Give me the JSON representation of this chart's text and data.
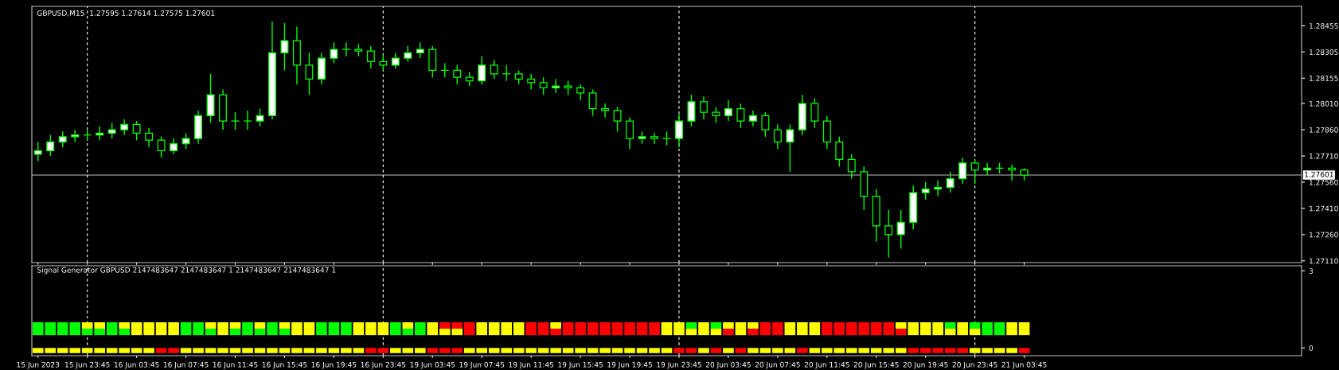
{
  "chart_data": [
    {
      "type": "candlestick",
      "title": "GBPUSD,M15  1.27595 1.27614 1.27575 1.27601",
      "categories": [
        "15 Jun 2023",
        null,
        null,
        null,
        "15 Jun 23:45",
        null,
        null,
        null,
        "16 Jun 03:45",
        null,
        null,
        null,
        "16 Jun 07:45",
        null,
        null,
        null,
        "16 Jun 11:45",
        null,
        null,
        null,
        "16 Jun 15:45",
        null,
        null,
        null,
        "16 Jun 19:45",
        null,
        null,
        null,
        "16 Jun 23:45",
        null,
        null,
        null,
        "19 Jun 03:45",
        null,
        null,
        null,
        "19 Jun 07:45",
        null,
        null,
        null,
        "19 Jun 11:45",
        null,
        null,
        null,
        "19 Jun 15:45",
        null,
        null,
        null,
        "19 Jun 19:45",
        null,
        null,
        null,
        "19 Jun 23:45",
        null,
        null,
        null,
        "20 Jun 03:45",
        null,
        null,
        null,
        "20 Jun 07:45",
        null,
        null,
        null,
        "20 Jun 11:45",
        null,
        null,
        null,
        "20 Jun 15:45",
        null,
        null,
        null,
        "20 Jun 19:45",
        null,
        null,
        null,
        "20 Jun 23:45",
        null,
        null,
        null,
        "21 Jun 03:45",
        null,
        null,
        null,
        null,
        null,
        null,
        null,
        null,
        null,
        null,
        null,
        null,
        null,
        null,
        null,
        null,
        null,
        null,
        null,
        null,
        null,
        null
      ],
      "color": "#00ff00",
      "ohlc": [
        [
          1.2772,
          1.2779,
          1.2768,
          1.2774
        ],
        [
          1.2774,
          1.2783,
          1.2771,
          1.2779
        ],
        [
          1.2779,
          1.2785,
          1.2776,
          1.2782
        ],
        [
          1.2782,
          1.2786,
          1.2779,
          1.2783
        ],
        [
          1.2783,
          1.2786,
          1.278,
          1.2783
        ],
        [
          1.2783,
          1.2788,
          1.278,
          1.2784
        ],
        [
          1.2784,
          1.279,
          1.2781,
          1.2786
        ],
        [
          1.2786,
          1.2792,
          1.2783,
          1.2789
        ],
        [
          1.2789,
          1.2791,
          1.278,
          1.2784
        ],
        [
          1.2784,
          1.2787,
          1.2776,
          1.278
        ],
        [
          1.278,
          1.2782,
          1.277,
          1.2774
        ],
        [
          1.2774,
          1.2781,
          1.2772,
          1.2778
        ],
        [
          1.2778,
          1.2784,
          1.2775,
          1.2781
        ],
        [
          1.2781,
          1.2797,
          1.2778,
          1.2794
        ],
        [
          1.2794,
          1.2818,
          1.279,
          1.2806
        ],
        [
          1.2806,
          1.2809,
          1.2786,
          1.2791
        ],
        [
          1.2791,
          1.2796,
          1.2786,
          1.2791
        ],
        [
          1.2791,
          1.2797,
          1.2786,
          1.2791
        ],
        [
          1.2791,
          1.2798,
          1.2788,
          1.2794
        ],
        [
          1.2794,
          1.2848,
          1.2792,
          1.283
        ],
        [
          1.283,
          1.2847,
          1.282,
          1.2837
        ],
        [
          1.2837,
          1.2845,
          1.2812,
          1.2823
        ],
        [
          1.2823,
          1.283,
          1.2806,
          1.2815
        ],
        [
          1.2815,
          1.283,
          1.2812,
          1.2827
        ],
        [
          1.2827,
          1.2836,
          1.2824,
          1.2832
        ],
        [
          1.2832,
          1.2836,
          1.2828,
          1.2832
        ],
        [
          1.2832,
          1.2835,
          1.2828,
          1.2831
        ],
        [
          1.2831,
          1.2834,
          1.2821,
          1.2825
        ],
        [
          1.2825,
          1.2829,
          1.282,
          1.2823
        ],
        [
          1.2823,
          1.283,
          1.2821,
          1.2827
        ],
        [
          1.2827,
          1.2834,
          1.2825,
          1.283
        ],
        [
          1.283,
          1.2836,
          1.2827,
          1.2832
        ],
        [
          1.2832,
          1.2834,
          1.2816,
          1.282
        ],
        [
          1.282,
          1.2824,
          1.2816,
          1.282
        ],
        [
          1.282,
          1.2823,
          1.2812,
          1.2816
        ],
        [
          1.2816,
          1.2819,
          1.2811,
          1.2814
        ],
        [
          1.2814,
          1.2828,
          1.2812,
          1.2823
        ],
        [
          1.2823,
          1.2826,
          1.2815,
          1.2818
        ],
        [
          1.2818,
          1.2823,
          1.2814,
          1.2818
        ],
        [
          1.2818,
          1.282,
          1.2812,
          1.2815
        ],
        [
          1.2815,
          1.2818,
          1.2809,
          1.2813
        ],
        [
          1.2813,
          1.2816,
          1.2806,
          1.281
        ],
        [
          1.281,
          1.2815,
          1.2807,
          1.2811
        ],
        [
          1.2811,
          1.2814,
          1.2806,
          1.281
        ],
        [
          1.281,
          1.2812,
          1.2803,
          1.2807
        ],
        [
          1.2807,
          1.2809,
          1.2794,
          1.2798
        ],
        [
          1.2798,
          1.2801,
          1.2793,
          1.2797
        ],
        [
          1.2797,
          1.2799,
          1.2785,
          1.2791
        ],
        [
          1.2791,
          1.2793,
          1.2775,
          1.2781
        ],
        [
          1.2781,
          1.2785,
          1.2778,
          1.2782
        ],
        [
          1.2782,
          1.2784,
          1.2778,
          1.2781
        ],
        [
          1.2781,
          1.2785,
          1.2777,
          1.2781
        ],
        [
          1.2781,
          1.2795,
          1.2776,
          1.2791
        ],
        [
          1.2791,
          1.2806,
          1.2788,
          1.2802
        ],
        [
          1.2802,
          1.2805,
          1.2792,
          1.2796
        ],
        [
          1.2796,
          1.2799,
          1.279,
          1.2794
        ],
        [
          1.2794,
          1.2803,
          1.2791,
          1.2798
        ],
        [
          1.2798,
          1.2801,
          1.2787,
          1.2791
        ],
        [
          1.2791,
          1.2797,
          1.2788,
          1.2794
        ],
        [
          1.2794,
          1.2796,
          1.2782,
          1.2786
        ],
        [
          1.2786,
          1.2789,
          1.2775,
          1.2779
        ],
        [
          1.2779,
          1.2789,
          1.2762,
          1.2786
        ],
        [
          1.2786,
          1.2806,
          1.2783,
          1.2801
        ],
        [
          1.2801,
          1.2804,
          1.2787,
          1.2791
        ],
        [
          1.2791,
          1.2794,
          1.2775,
          1.2779
        ],
        [
          1.2779,
          1.2782,
          1.2765,
          1.2769
        ],
        [
          1.2769,
          1.2772,
          1.2758,
          1.2762
        ],
        [
          1.2762,
          1.2765,
          1.274,
          1.2748
        ],
        [
          1.2748,
          1.2752,
          1.2722,
          1.2731
        ],
        [
          1.2731,
          1.274,
          1.2713,
          1.2726
        ],
        [
          1.2726,
          1.274,
          1.2718,
          1.2733
        ],
        [
          1.2733,
          1.2754,
          1.2729,
          1.275
        ],
        [
          1.275,
          1.2756,
          1.2746,
          1.2752
        ],
        [
          1.2752,
          1.2757,
          1.2748,
          1.2753
        ],
        [
          1.2753,
          1.2762,
          1.275,
          1.2758
        ],
        [
          1.2758,
          1.277,
          1.2755,
          1.2767
        ],
        [
          1.2767,
          1.2769,
          1.2755,
          1.2763
        ],
        [
          1.2763,
          1.2767,
          1.276,
          1.2764
        ],
        [
          1.2764,
          1.2767,
          1.2761,
          1.2764
        ],
        [
          1.2764,
          1.2766,
          1.2757,
          1.2763
        ],
        [
          1.2763,
          1.2764,
          1.2757,
          1.276
        ],
        null,
        null,
        null,
        null,
        null,
        null,
        null,
        null,
        null,
        null,
        null,
        null,
        null,
        null,
        null,
        null,
        null,
        null,
        null,
        null,
        null,
        null
      ],
      "ylim": [
        1.271,
        1.28566
      ],
      "yticks": [
        {
          "value": 1.28455,
          "label": "1.28455"
        },
        {
          "value": 1.28305,
          "label": "1.28305"
        },
        {
          "value": 1.28155,
          "label": "1.28155"
        },
        {
          "value": 1.2801,
          "label": "1.28010"
        },
        {
          "value": 1.2786,
          "label": "1.27860"
        },
        {
          "value": 1.2771,
          "label": "1.27710"
        },
        {
          "value": 1.2756,
          "label": "1.27560"
        },
        {
          "value": 1.2741,
          "label": "1.27410"
        },
        {
          "value": 1.2726,
          "label": "1.27260"
        },
        {
          "value": 1.2711,
          "label": "1.27110"
        }
      ],
      "ref_lines": [
        {
          "axis": "y",
          "value": 1.27601,
          "label": "1.27601",
          "color": "#c0c0c0",
          "line_style": "solid"
        },
        {
          "axis": "x",
          "value": "15 Jun 23:45",
          "color": "#ffffff",
          "line_style": "dashed"
        },
        {
          "axis": "x",
          "value": "16 Jun 23:45",
          "color": "#ffffff",
          "line_style": "dashed"
        },
        {
          "axis": "x",
          "value": "19 Jun 23:45",
          "color": "#ffffff",
          "line_style": "dashed"
        },
        {
          "axis": "x",
          "value": "20 Jun 23:45",
          "color": "#ffffff",
          "line_style": "dashed"
        }
      ],
      "tick_labels": "y"
    },
    {
      "type": "bar",
      "title": "Signal Generator GBPUSD 2147483647 2147483647 1 2147483647 2147483647 1",
      "categories": [
        "15 Jun 2023",
        null,
        null,
        null,
        "15 Jun 23:45",
        null,
        null,
        null,
        "16 Jun 03:45",
        null,
        null,
        null,
        "16 Jun 07:45",
        null,
        null,
        null,
        "16 Jun 11:45",
        null,
        null,
        null,
        "16 Jun 15:45",
        null,
        null,
        null,
        "16 Jun 19:45",
        null,
        null,
        null,
        "16 Jun 23:45",
        null,
        null,
        null,
        "19 Jun 03:45",
        null,
        null,
        null,
        "19 Jun 07:45",
        null,
        null,
        null,
        "19 Jun 11:45",
        null,
        null,
        null,
        "19 Jun 15:45",
        null,
        null,
        null,
        "19 Jun 19:45",
        null,
        null,
        null,
        "19 Jun 23:45",
        null,
        null,
        null,
        "20 Jun 03:45",
        null,
        null,
        null,
        "20 Jun 07:45",
        null,
        null,
        null,
        "20 Jun 11:45",
        null,
        null,
        null,
        "20 Jun 15:45",
        null,
        null,
        null,
        "20 Jun 19:45",
        null,
        null,
        null,
        "20 Jun 23:45",
        null,
        null,
        null,
        "21 Jun 03:45",
        null,
        null,
        null,
        null,
        null,
        null,
        null,
        null,
        null,
        null,
        null,
        null,
        null,
        null,
        null,
        null,
        null,
        null,
        null,
        null,
        null,
        null
      ],
      "series": [
        {
          "base": [
            0.75,
            0.75,
            0.75,
            0.75,
            0.75,
            0.75,
            0.75,
            0.75,
            0.75,
            0.75,
            0.75,
            0.75,
            0.75,
            0.75,
            0.75,
            0.75,
            0.75,
            0.75,
            0.75,
            0.75,
            0.75,
            0.75,
            0.75,
            0.75,
            0.75,
            0.75,
            0.75,
            0.75,
            0.75,
            0.75,
            0.75,
            0.75,
            0.75,
            0.75,
            0.75,
            0.75,
            0.75,
            0.75,
            0.75,
            0.75,
            0.75,
            0.75,
            0.75,
            0.75,
            0.75,
            0.75,
            0.75,
            0.75,
            0.75,
            0.75,
            0.75,
            0.75,
            0.75,
            0.75,
            0.75,
            0.75,
            0.75,
            0.75,
            0.75,
            0.75,
            0.75,
            0.75,
            0.75,
            0.75,
            0.75,
            0.75,
            0.75,
            0.75,
            0.75,
            0.75,
            0.75,
            0.75,
            0.75,
            0.75,
            0.75,
            0.75,
            0.75,
            0.75,
            0.75,
            0.75,
            0.75,
            null,
            null,
            null,
            null,
            null,
            null,
            null,
            null,
            null,
            null,
            null,
            null,
            null,
            null,
            null,
            null,
            null,
            null,
            null,
            null,
            null,
            null
          ],
          "values": [
            0.25,
            0.25,
            0.25,
            0.25,
            0.25,
            0.25,
            0.25,
            0.25,
            0.25,
            0.25,
            0.25,
            0.25,
            0.25,
            0.25,
            0.25,
            0.25,
            0.25,
            0.25,
            0.25,
            0.25,
            0.25,
            0.25,
            0.25,
            0.25,
            0.25,
            0.25,
            0.25,
            0.25,
            0.25,
            0.25,
            0.25,
            0.25,
            0.25,
            0.25,
            0.25,
            0.25,
            0.25,
            0.25,
            0.25,
            0.25,
            0.25,
            0.25,
            0.25,
            0.25,
            0.25,
            0.25,
            0.25,
            0.25,
            0.25,
            0.25,
            0.25,
            0.25,
            0.25,
            0.25,
            0.25,
            0.25,
            0.25,
            0.25,
            0.25,
            0.25,
            0.25,
            0.25,
            0.25,
            0.25,
            0.25,
            0.25,
            0.25,
            0.25,
            0.25,
            0.25,
            0.25,
            0.25,
            0.25,
            0.25,
            0.25,
            0.25,
            0.25,
            0.25,
            0.25,
            0.25,
            0.25,
            null,
            null,
            null,
            null,
            null,
            null,
            null,
            null,
            null,
            null,
            null,
            null,
            null,
            null,
            null,
            null,
            null,
            null,
            null,
            null,
            null,
            null
          ],
          "colors": [
            "#00ff00",
            "#00ff00",
            "#00ff00",
            "#00ff00",
            "#ffff00",
            "#ffff00",
            "#00ff00",
            "#ffff00",
            "#ffff00",
            "#ffff00",
            "#ffff00",
            "#ffff00",
            "#00ff00",
            "#00ff00",
            "#ffff00",
            "#ffff00",
            "#ffff00",
            "#00ff00",
            "#ffff00",
            "#00ff00",
            "#ffff00",
            "#ffff00",
            "#ffff00",
            "#00ff00",
            "#00ff00",
            "#00ff00",
            "#ffff00",
            "#ffff00",
            "#ffff00",
            "#00ff00",
            "#ffff00",
            "#00ff00",
            "#ffff00",
            "#ff0000",
            "#ff0000",
            "#ff0000",
            "#ffff00",
            "#ffff00",
            "#ffff00",
            "#ffff00",
            "#ff0000",
            "#ff0000",
            "#ffff00",
            "#ff0000",
            "#ff0000",
            "#ff0000",
            "#ff0000",
            "#ff0000",
            "#ff0000",
            "#ff0000",
            "#ff0000",
            "#ffff00",
            "#ffff00",
            "#00ff00",
            "#ffff00",
            "#00ff00",
            "#ffff00",
            "#ffff00",
            "#ffff00",
            "#ff0000",
            "#ff0000",
            "#ffff00",
            "#ffff00",
            "#ffff00",
            "#ff0000",
            "#ff0000",
            "#ff0000",
            "#ff0000",
            "#ff0000",
            "#ff0000",
            "#ffff00",
            "#ffff00",
            "#ffff00",
            "#ffff00",
            "#00ff00",
            "#ffff00",
            "#00ff00",
            "#00ff00",
            "#00ff00",
            "#ffff00",
            "#ffff00",
            null,
            null,
            null,
            null,
            null,
            null,
            null,
            null,
            null,
            null,
            null,
            null,
            null,
            null,
            null,
            null,
            null,
            null,
            null,
            null,
            null,
            null
          ]
        },
        {
          "base": [
            0.5,
            0.5,
            0.5,
            0.5,
            0.5,
            0.5,
            0.5,
            0.5,
            0.5,
            0.5,
            0.5,
            0.5,
            0.5,
            0.5,
            0.5,
            0.5,
            0.5,
            0.5,
            0.5,
            0.5,
            0.5,
            0.5,
            0.5,
            0.5,
            0.5,
            0.5,
            0.5,
            0.5,
            0.5,
            0.5,
            0.5,
            0.5,
            0.5,
            0.5,
            0.5,
            0.5,
            0.5,
            0.5,
            0.5,
            0.5,
            0.5,
            0.5,
            0.5,
            0.5,
            0.5,
            0.5,
            0.5,
            0.5,
            0.5,
            0.5,
            0.5,
            0.5,
            0.5,
            0.5,
            0.5,
            0.5,
            0.5,
            0.5,
            0.5,
            0.5,
            0.5,
            0.5,
            0.5,
            0.5,
            0.5,
            0.5,
            0.5,
            0.5,
            0.5,
            0.5,
            0.5,
            0.5,
            0.5,
            0.5,
            0.5,
            0.5,
            0.5,
            0.5,
            0.5,
            0.5,
            0.5,
            null,
            null,
            null,
            null,
            null,
            null,
            null,
            null,
            null,
            null,
            null,
            null,
            null,
            null,
            null,
            null,
            null,
            null,
            null,
            null,
            null,
            null
          ],
          "values": [
            0.25,
            0.25,
            0.25,
            0.25,
            0.25,
            0.25,
            0.25,
            0.25,
            0.25,
            0.25,
            0.25,
            0.25,
            0.25,
            0.25,
            0.25,
            0.25,
            0.25,
            0.25,
            0.25,
            0.25,
            0.25,
            0.25,
            0.25,
            0.25,
            0.25,
            0.25,
            0.25,
            0.25,
            0.25,
            0.25,
            0.25,
            0.25,
            0.25,
            0.25,
            0.25,
            0.25,
            0.25,
            0.25,
            0.25,
            0.25,
            0.25,
            0.25,
            0.25,
            0.25,
            0.25,
            0.25,
            0.25,
            0.25,
            0.25,
            0.25,
            0.25,
            0.25,
            0.25,
            0.25,
            0.25,
            0.25,
            0.25,
            0.25,
            0.25,
            0.25,
            0.25,
            0.25,
            0.25,
            0.25,
            0.25,
            0.25,
            0.25,
            0.25,
            0.25,
            0.25,
            0.25,
            0.25,
            0.25,
            0.25,
            0.25,
            0.25,
            0.25,
            0.25,
            0.25,
            0.25,
            0.25,
            null,
            null,
            null,
            null,
            null,
            null,
            null,
            null,
            null,
            null,
            null,
            null,
            null,
            null,
            null,
            null,
            null,
            null,
            null,
            null,
            null,
            null
          ],
          "colors": [
            "#00ff00",
            "#00ff00",
            "#00ff00",
            "#00ff00",
            "#00ff00",
            "#00ff00",
            "#00ff00",
            "#00ff00",
            "#ffff00",
            "#ffff00",
            "#ffff00",
            "#ffff00",
            "#00ff00",
            "#00ff00",
            "#00ff00",
            "#ffff00",
            "#00ff00",
            "#00ff00",
            "#00ff00",
            "#00ff00",
            "#00ff00",
            "#ffff00",
            "#ffff00",
            "#00ff00",
            "#00ff00",
            "#00ff00",
            "#ffff00",
            "#ffff00",
            "#ffff00",
            "#00ff00",
            "#00ff00",
            "#00ff00",
            "#ffff00",
            "#ffff00",
            "#ffff00",
            "#ff0000",
            "#ffff00",
            "#ffff00",
            "#ffff00",
            "#ffff00",
            "#ff0000",
            "#ff0000",
            "#ff0000",
            "#ff0000",
            "#ff0000",
            "#ff0000",
            "#ff0000",
            "#ff0000",
            "#ff0000",
            "#ff0000",
            "#ff0000",
            "#ffff00",
            "#ffff00",
            "#ffff00",
            "#ffff00",
            "#ffff00",
            "#ff0000",
            "#ffff00",
            "#ff0000",
            "#ff0000",
            "#ff0000",
            "#ffff00",
            "#ffff00",
            "#ffff00",
            "#ff0000",
            "#ff0000",
            "#ff0000",
            "#ff0000",
            "#ff0000",
            "#ff0000",
            "#ff0000",
            "#ffff00",
            "#ffff00",
            "#ffff00",
            "#ffff00",
            "#ffff00",
            "#ffff00",
            "#00ff00",
            "#00ff00",
            "#ffff00",
            "#ffff00",
            null,
            null,
            null,
            null,
            null,
            null,
            null,
            null,
            null,
            null,
            null,
            null,
            null,
            null,
            null,
            null,
            null,
            null,
            null,
            null,
            null,
            null
          ]
        },
        {
          "base": [
            -0.2,
            -0.2,
            -0.2,
            -0.2,
            -0.2,
            -0.2,
            -0.2,
            -0.2,
            -0.2,
            -0.2,
            -0.2,
            -0.2,
            -0.2,
            -0.2,
            -0.2,
            -0.2,
            -0.2,
            -0.2,
            -0.2,
            -0.2,
            -0.2,
            -0.2,
            -0.2,
            -0.2,
            -0.2,
            -0.2,
            -0.2,
            -0.2,
            -0.2,
            -0.2,
            -0.2,
            -0.2,
            -0.2,
            -0.2,
            -0.2,
            -0.2,
            -0.2,
            -0.2,
            -0.2,
            -0.2,
            -0.2,
            -0.2,
            -0.2,
            -0.2,
            -0.2,
            -0.2,
            -0.2,
            -0.2,
            -0.2,
            -0.2,
            -0.2,
            -0.2,
            -0.2,
            -0.2,
            -0.2,
            -0.2,
            -0.2,
            -0.2,
            -0.2,
            -0.2,
            -0.2,
            -0.2,
            -0.2,
            -0.2,
            -0.2,
            -0.2,
            -0.2,
            -0.2,
            -0.2,
            -0.2,
            -0.2,
            -0.2,
            -0.2,
            -0.2,
            -0.2,
            -0.2,
            -0.2,
            -0.2,
            -0.2,
            -0.2,
            -0.2,
            null,
            null,
            null,
            null,
            null,
            null,
            null,
            null,
            null,
            null,
            null,
            null,
            null,
            null,
            null,
            null,
            null,
            null,
            null,
            null,
            null,
            null
          ],
          "values": [
            0.2,
            0.2,
            0.2,
            0.2,
            0.2,
            0.2,
            0.2,
            0.2,
            0.2,
            0.2,
            0.2,
            0.2,
            0.2,
            0.2,
            0.2,
            0.2,
            0.2,
            0.2,
            0.2,
            0.2,
            0.2,
            0.2,
            0.2,
            0.2,
            0.2,
            0.2,
            0.2,
            0.2,
            0.2,
            0.2,
            0.2,
            0.2,
            0.2,
            0.2,
            0.2,
            0.2,
            0.2,
            0.2,
            0.2,
            0.2,
            0.2,
            0.2,
            0.2,
            0.2,
            0.2,
            0.2,
            0.2,
            0.2,
            0.2,
            0.2,
            0.2,
            0.2,
            0.2,
            0.2,
            0.2,
            0.2,
            0.2,
            0.2,
            0.2,
            0.2,
            0.2,
            0.2,
            0.2,
            0.2,
            0.2,
            0.2,
            0.2,
            0.2,
            0.2,
            0.2,
            0.2,
            0.2,
            0.2,
            0.2,
            0.2,
            0.2,
            0.2,
            0.2,
            0.2,
            0.2,
            0.2,
            null,
            null,
            null,
            null,
            null,
            null,
            null,
            null,
            null,
            null,
            null,
            null,
            null,
            null,
            null,
            null,
            null,
            null,
            null,
            null,
            null,
            null
          ],
          "colors": [
            "#ffff00",
            "#ffff00",
            "#ffff00",
            "#ffff00",
            "#ffff00",
            "#ffff00",
            "#ffff00",
            "#ffff00",
            "#ffff00",
            "#ffff00",
            "#ff0000",
            "#ff0000",
            "#ffff00",
            "#ffff00",
            "#ffff00",
            "#ffff00",
            "#ffff00",
            "#ffff00",
            "#ffff00",
            "#ffff00",
            "#ffff00",
            "#ffff00",
            "#ffff00",
            "#ffff00",
            "#ffff00",
            "#ffff00",
            "#ffff00",
            "#ff0000",
            "#ff0000",
            "#ffff00",
            "#ffff00",
            "#ffff00",
            "#ff0000",
            "#ff0000",
            "#ff0000",
            "#ffff00",
            "#ffff00",
            "#ffff00",
            "#ffff00",
            "#ffff00",
            "#ffff00",
            "#ffff00",
            "#ffff00",
            "#ffff00",
            "#ffff00",
            "#ffff00",
            "#ffff00",
            "#ffff00",
            "#ffff00",
            "#ffff00",
            "#ffff00",
            "#ffff00",
            "#ff0000",
            "#ff0000",
            "#ffff00",
            "#ff0000",
            "#ffff00",
            "#ff0000",
            "#ffff00",
            "#ffff00",
            "#ffff00",
            "#ffff00",
            "#ff0000",
            "#ffff00",
            "#ffff00",
            "#ffff00",
            "#ffff00",
            "#ffff00",
            "#ffff00",
            "#ffff00",
            "#ffff00",
            "#ff0000",
            "#ff0000",
            "#ff0000",
            "#ff0000",
            "#ff0000",
            "#ffff00",
            "#ffff00",
            "#ffff00",
            "#ffff00",
            "#ff0000",
            null,
            null,
            null,
            null,
            null,
            null,
            null,
            null,
            null,
            null,
            null,
            null,
            null,
            null,
            null,
            null,
            null,
            null,
            null,
            null,
            null,
            null
          ]
        }
      ],
      "ylim": [
        -0.3,
        3.2
      ],
      "yticks": [
        0,
        3
      ],
      "ref_lines": [
        {
          "axis": "x",
          "value": "15 Jun 23:45",
          "color": "#ffffff",
          "line_style": "dashed"
        },
        {
          "axis": "x",
          "value": "16 Jun 23:45",
          "color": "#ffffff",
          "line_style": "dashed"
        },
        {
          "axis": "x",
          "value": "19 Jun 23:45",
          "color": "#ffffff",
          "line_style": "dashed"
        },
        {
          "axis": "x",
          "value": "20 Jun 23:45",
          "color": "#ffffff",
          "line_style": "dashed"
        }
      ]
    }
  ]
}
